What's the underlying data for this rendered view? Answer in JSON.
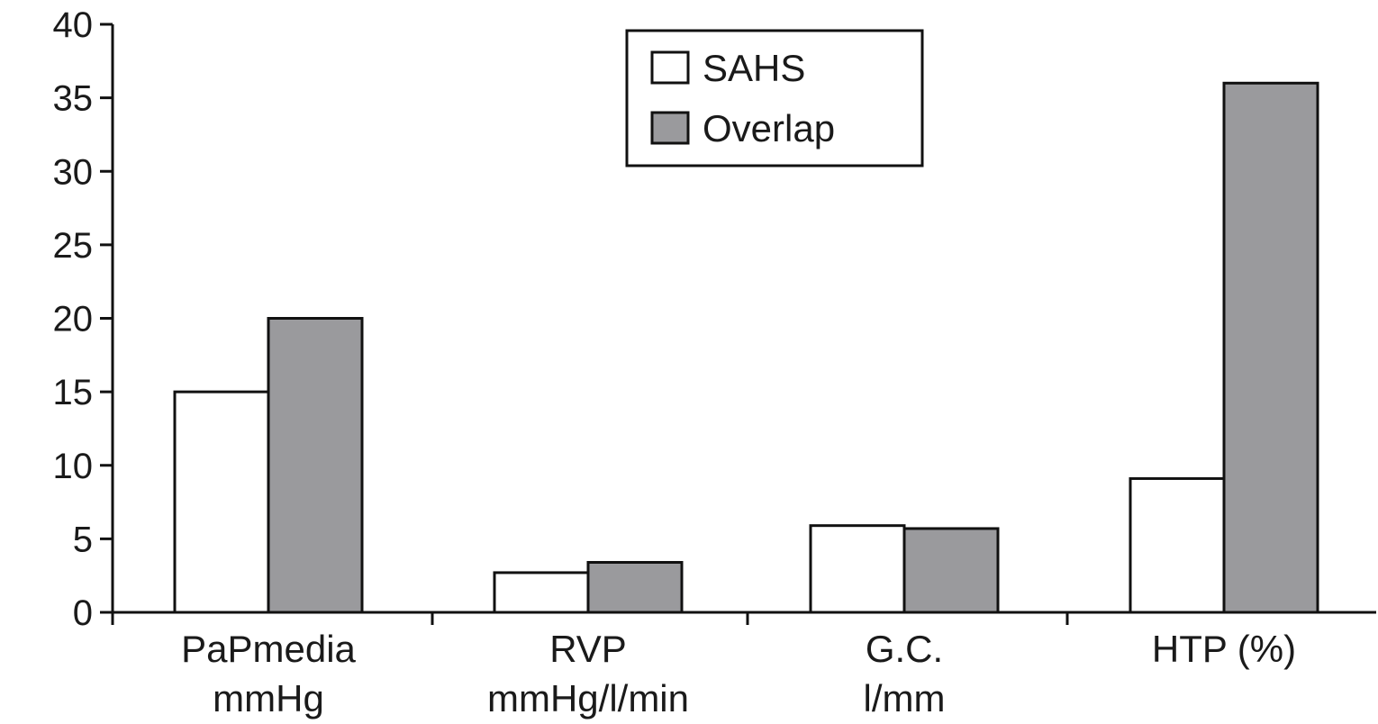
{
  "chart_data": {
    "type": "bar",
    "title": "",
    "xlabel": "",
    "ylabel": "",
    "ylim": [
      0,
      40
    ],
    "yticks": [
      0,
      5,
      10,
      15,
      20,
      25,
      30,
      35,
      40
    ],
    "grid": false,
    "legend_position": "top-center",
    "categories": [
      [
        "PaPmedia",
        "mmHg"
      ],
      [
        "RVP",
        "mmHg/l/min"
      ],
      [
        "G.C.",
        "l/mm"
      ],
      [
        "HTP (%)"
      ]
    ],
    "series": [
      {
        "name": "SAHS",
        "color": "#ffffff",
        "values": [
          15,
          2.7,
          5.9,
          9.1
        ]
      },
      {
        "name": "Overlap",
        "color": "#9a9a9d",
        "values": [
          20,
          3.4,
          5.7,
          36
        ]
      }
    ]
  }
}
